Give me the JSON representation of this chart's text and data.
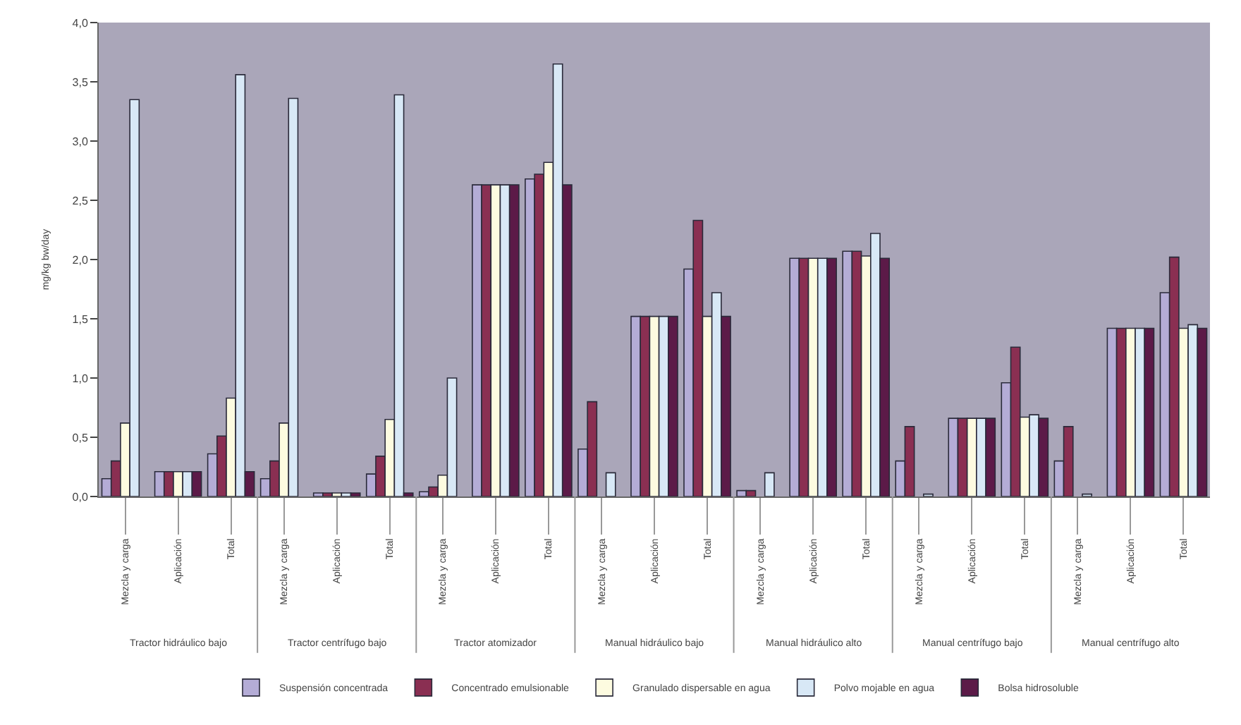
{
  "chart_data": {
    "type": "bar",
    "ylabel": "mg/kg bw/day",
    "categories": [
      "Mezcla y carga",
      "Aplicación",
      "Total",
      "Mezcla y carga",
      "Aplicación",
      "Total",
      "Mezcla y carga",
      "Aplicación",
      "Total",
      "Mezcla y carga",
      "Aplicación",
      "Total",
      "Mezcla y carga",
      "Aplicación",
      "Total",
      "Mezcla y carga",
      "Aplicación",
      "Total",
      "Mezcla y carga",
      "Aplicación",
      "Total"
    ],
    "series": [
      {
        "name": "Suspensión concentrada",
        "color": "#b4acd6",
        "values": [
          0.15,
          0.21,
          0.36,
          0.15,
          0.03,
          0.19,
          0.04,
          2.63,
          2.68,
          0.4,
          1.52,
          1.92,
          0.05,
          2.01,
          2.07,
          0.3,
          0.66,
          0.96,
          0.3,
          1.42,
          1.72
        ]
      },
      {
        "name": "Concentrado emulsionable",
        "color": "#8a2f52",
        "values": [
          0.3,
          0.21,
          0.51,
          0.3,
          0.03,
          0.34,
          0.08,
          2.63,
          2.72,
          0.8,
          1.52,
          2.33,
          0.05,
          2.01,
          2.07,
          0.59,
          0.66,
          1.26,
          0.59,
          1.42,
          2.02
        ]
      },
      {
        "name": "Granulado dispersable en agua",
        "color": "#fdfbe0",
        "values": [
          0.62,
          0.21,
          0.83,
          0.62,
          0.03,
          0.65,
          0.18,
          2.63,
          2.82,
          null,
          1.52,
          1.52,
          null,
          2.01,
          2.03,
          null,
          0.66,
          0.67,
          null,
          1.42,
          1.42
        ]
      },
      {
        "name": "Polvo mojable en agua",
        "color": "#d8e8f6",
        "values": [
          3.35,
          0.21,
          3.56,
          3.36,
          0.03,
          3.39,
          1.0,
          2.63,
          3.65,
          0.2,
          1.52,
          1.72,
          0.2,
          2.01,
          2.22,
          0.02,
          0.66,
          0.69,
          0.02,
          1.42,
          1.45
        ]
      },
      {
        "name": "Bolsa hidrosoluble",
        "color": "#5c1a48",
        "values": [
          null,
          0.21,
          0.21,
          null,
          0.03,
          0.03,
          null,
          2.63,
          2.63,
          null,
          1.52,
          1.52,
          null,
          2.01,
          2.01,
          null,
          0.66,
          0.66,
          null,
          1.42,
          1.42
        ]
      }
    ],
    "annotations": [
      "Tractor hidráulico bajo",
      "Tractor centrífugo bajo",
      "Tractor atomizador",
      "Manual hidráulico bajo",
      "Manual hidráulico alto",
      "Manual centrífugo bajo",
      "Manual centrífugo alto"
    ],
    "ylim": [
      0,
      4
    ],
    "yticks": [
      {
        "value": 0,
        "label": "0,0"
      },
      {
        "value": 0.5,
        "label": "0,5"
      },
      {
        "value": 1,
        "label": "1,0"
      },
      {
        "value": 1.5,
        "label": "1,5"
      },
      {
        "value": 2,
        "label": "2,0"
      },
      {
        "value": 2.5,
        "label": "2,5"
      },
      {
        "value": 3,
        "label": "3,0"
      },
      {
        "value": 3.5,
        "label": "3,5"
      },
      {
        "value": 4,
        "label": "4,0"
      }
    ],
    "grid": false,
    "legend": "bottom"
  }
}
